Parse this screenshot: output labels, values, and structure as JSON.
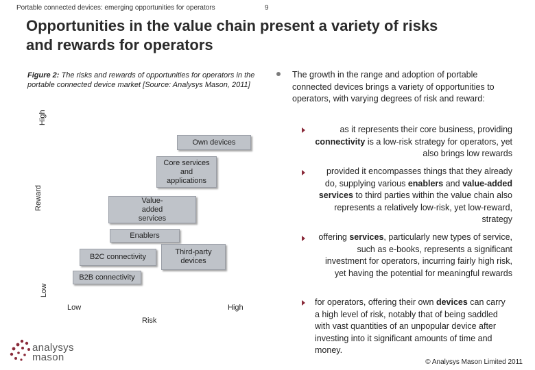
{
  "header": {
    "subtitle": "Portable connected devices: emerging opportunities for operators",
    "page_number": "9"
  },
  "title_line1": "Opportunities in the value chain present a variety of risks",
  "title_line2": "and rewards for operators",
  "figure": {
    "caption_bold": "Figure 2:",
    "caption_rest": " The risks and rewards of opportunities for operators in the portable connected device market [Source: Analysys Mason, 2011]",
    "y_axis_label": "Reward",
    "y_high": "High",
    "y_low": "Low",
    "x_axis_label": "Risk",
    "x_low": "Low",
    "x_high": "High",
    "boxes": {
      "own_devices": "Own devices",
      "core_services": "Core services and applications",
      "value_added": "Value-added services",
      "enablers": "Enablers",
      "b2c": "B2C connectivity",
      "third_party": "Third-party devices",
      "b2b": "B2B connectivity"
    }
  },
  "body": {
    "lead": "The growth in the range and adoption of portable connected devices brings a variety of opportunities to operators, with varying degrees of risk and reward:",
    "bullets": [
      {
        "pre": "as it represents their core business, providing ",
        "b1": "connectivity",
        "mid": " is a low-risk strategy for operators, yet also brings low rewards",
        "b2": "",
        "post": ""
      },
      {
        "pre": "provided it encompasses things that they already do, supplying various ",
        "b1": "enablers",
        "mid": " and ",
        "b2": "value-added services",
        "post": " to third parties within the value chain also represents a relatively low-risk, yet low-reward, strategy"
      },
      {
        "pre": "offering ",
        "b1": "services",
        "mid": ", particularly new types of service, such as e-books, represents a significant investment for operators, incurring fairly high risk, yet having the potential for meaningful rewards",
        "b2": "",
        "post": ""
      },
      {
        "pre": "for operators, offering their own ",
        "b1": "devices",
        "mid": " can carry a high level of risk, notably that of being saddled with vast quantities of an unpopular device after investing into it significant amounts of time and money.",
        "b2": "",
        "post": ""
      }
    ]
  },
  "logo": {
    "line1": "analysys",
    "line2": "mason"
  },
  "footer": {
    "copyright": "© Analysys Mason Limited 2011"
  },
  "colors": {
    "box_fill": "#bfc3c9",
    "bullet_accent": "#8a2a3a",
    "logo_dot": "#8a2a3a"
  }
}
